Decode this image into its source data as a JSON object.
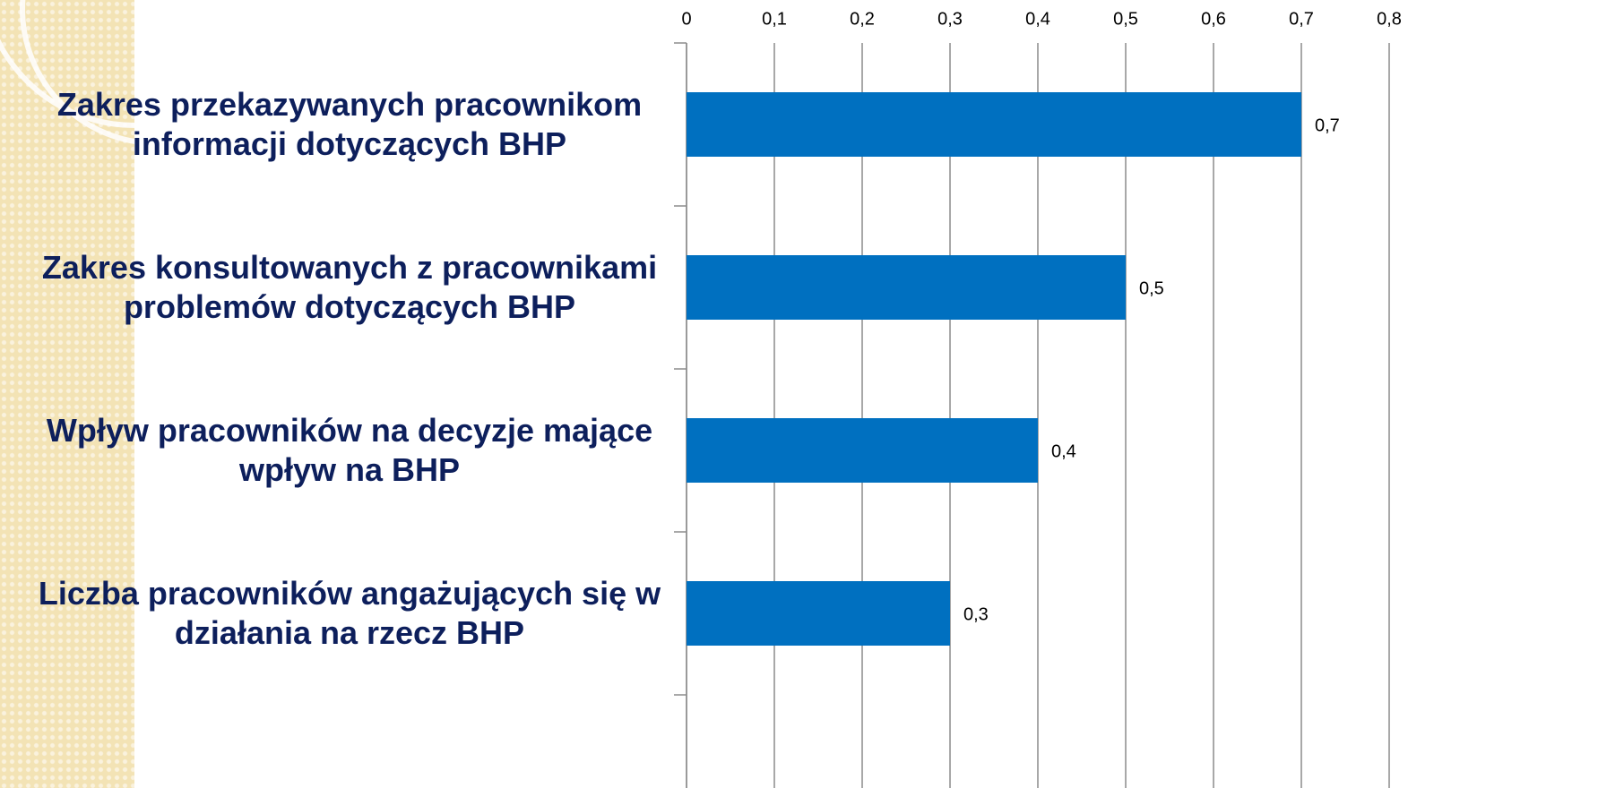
{
  "chart_data": {
    "type": "bar",
    "orientation": "horizontal",
    "categories": [
      "Zakres przekazywanych pracownikom\ninformacji dotyczących BHP",
      "Zakres konsultowanych z pracownikami\nproblemów dotyczących BHP",
      "Wpływ pracowników na decyzje mające\nwpływ na BHP",
      "Liczba pracowników angażujących się w\ndziałania na rzecz BHP"
    ],
    "values": [
      0.7,
      0.5,
      0.4,
      0.3
    ],
    "value_labels": [
      "0,7",
      "0,5",
      "0,4",
      "0,3"
    ],
    "color": "#0070c0",
    "xlim": [
      0,
      0.8
    ],
    "xticks": [
      0,
      {
        "value": 0.1,
        "label": "0,1"
      },
      {
        "value": 0.2,
        "label": "0,2"
      },
      {
        "value": 0.3,
        "label": "0,3"
      },
      {
        "value": 0.4,
        "label": "0,4"
      },
      {
        "value": 0.5,
        "label": "0,5"
      },
      {
        "value": 0.6,
        "label": "0,6"
      },
      {
        "value": 0.7,
        "label": "0,7"
      },
      {
        "value": 0.8,
        "label": "0,8"
      }
    ],
    "grid": true
  }
}
